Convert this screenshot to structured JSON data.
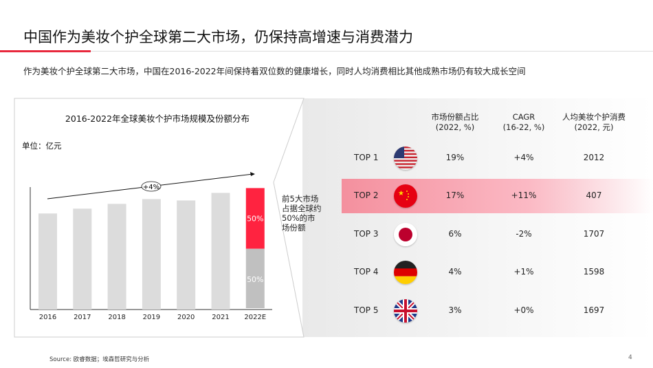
{
  "title": "中国作为美妆个护全球第二大市场，仍保持高增速与消费潜力",
  "subtitle": "作为美妆个护全球第二大市场，中国在2016-2022年间保持着双位数的健康增长，同时人均消费相比其他成熟市场仍有较大成长空间",
  "chart_data": {
    "type": "bar",
    "title": "2016-2022年全球美妆个护市场规模及份额分布",
    "unit": "单位：亿元",
    "categories": [
      "2016",
      "2017",
      "2018",
      "2019",
      "2020",
      "2021",
      "2022E"
    ],
    "values": [
      140,
      147,
      154,
      161,
      159,
      170,
      177
    ],
    "stacked_2022E": [
      {
        "label": "50%",
        "share": 50,
        "color": "#ff2340"
      },
      {
        "label": "50%",
        "share": 50,
        "color": "#c0c0c0"
      }
    ],
    "trend_label": "+4%",
    "bar_color": "#dcdcdc"
  },
  "callout": "前5大市场占据全球约50%的市场份额",
  "table": {
    "headers": [
      [
        "市场份额占比",
        "(2022, %)"
      ],
      [
        "CAGR",
        "(16-22, %)"
      ],
      [
        "人均美妆个护消费",
        "(2022, 元)"
      ]
    ],
    "rows": [
      {
        "rank": "TOP 1",
        "flag": "usa-flag-icon",
        "share": "19%",
        "cagr": "+4%",
        "spend": "2012",
        "highlight": false
      },
      {
        "rank": "TOP 2",
        "flag": "china-flag-icon",
        "share": "17%",
        "cagr": "+11%",
        "spend": "407",
        "highlight": true
      },
      {
        "rank": "TOP 3",
        "flag": "japan-flag-icon",
        "share": "6%",
        "cagr": "-2%",
        "spend": "1707",
        "highlight": false
      },
      {
        "rank": "TOP 4",
        "flag": "germany-flag-icon",
        "share": "4%",
        "cagr": "+1%",
        "spend": "1598",
        "highlight": false
      },
      {
        "rank": "TOP 5",
        "flag": "uk-flag-icon",
        "share": "3%",
        "cagr": "+0%",
        "spend": "1697",
        "highlight": false
      }
    ]
  },
  "source": "Source: 欧睿数据；埃森哲研究与分析",
  "page_number": "4",
  "colors": {
    "accent": "#e8283c",
    "highlight_row": "#f4909e"
  }
}
